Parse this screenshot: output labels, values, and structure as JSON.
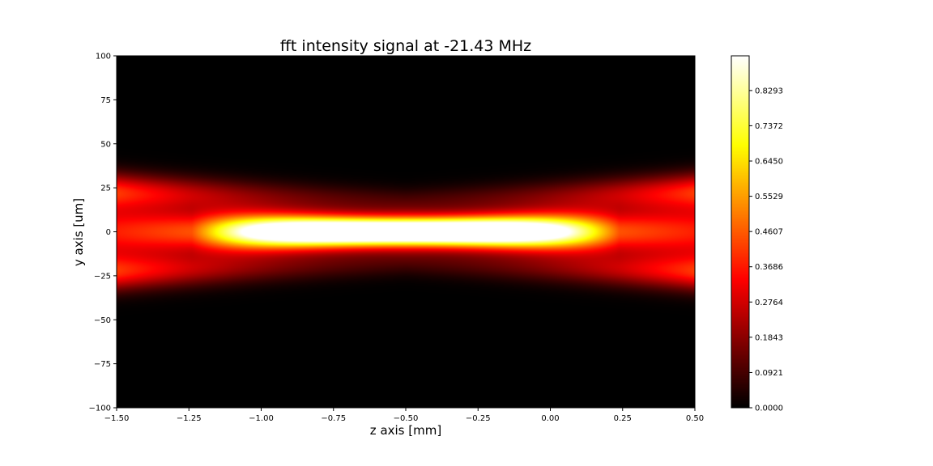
{
  "chart_data": {
    "type": "heatmap",
    "title": "fft intensity signal at -21.43 MHz",
    "xlabel": "z axis [mm]",
    "ylabel": "y axis [um]",
    "xlim": [
      -1.5,
      0.5
    ],
    "ylim": [
      -100,
      100
    ],
    "x_ticks": [
      -1.5,
      -1.25,
      -1.0,
      -0.75,
      -0.5,
      -0.25,
      0.0,
      0.25,
      0.5
    ],
    "x_tick_labels": [
      "−1.50",
      "−1.25",
      "−1.00",
      "−0.75",
      "−0.50",
      "−0.25",
      "0.00",
      "0.25",
      "0.50"
    ],
    "y_ticks": [
      -100,
      -75,
      -50,
      -25,
      0,
      25,
      50,
      75,
      100
    ],
    "y_tick_labels": [
      "−100",
      "−75",
      "−50",
      "−25",
      "0",
      "25",
      "50",
      "75",
      "100"
    ],
    "colormap": "hot",
    "colorbar": {
      "min": 0.0,
      "max": 0.92,
      "ticks": [
        0.0,
        0.0921,
        0.1843,
        0.2764,
        0.3686,
        0.4607,
        0.5529,
        0.645,
        0.7372,
        0.8293
      ],
      "tick_labels": [
        "0.0000",
        "0.0921",
        "0.1843",
        "0.2764",
        "0.3686",
        "0.4607",
        "0.5529",
        "0.6450",
        "0.7372",
        "0.8293"
      ]
    },
    "intensity_model": {
      "peak_center_z": -0.5,
      "peak_center_y": 0,
      "core_half_width_y": 8,
      "side_lobe_offset_y": 20,
      "note_visible": "bright core along y=0 from about -1.25 to 0.25 mm; dimmer red side lobes near y=±20 um"
    }
  }
}
